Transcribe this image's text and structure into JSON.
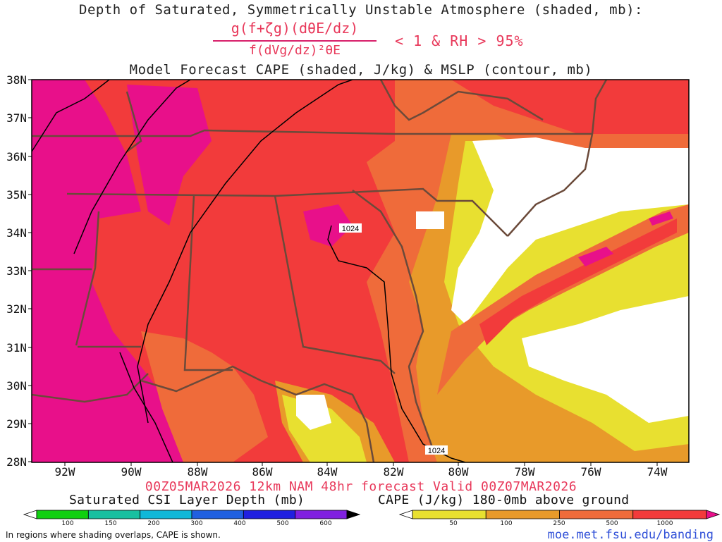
{
  "title": {
    "line1": "Depth of Saturated, Symmetrically Unstable Atmosphere (shaded, mb):",
    "numerator": "g(f+ζg)(dθE/dz)",
    "denominator": "f(dVg/dz)²θE",
    "condition": "< 1 & RH > 95%",
    "line3": "Model Forecast CAPE (shaded, J/kg) & MSLP (contour, mb)"
  },
  "map": {
    "latitude_labels": [
      "38N",
      "37N",
      "36N",
      "35N",
      "34N",
      "33N",
      "32N",
      "31N",
      "30N",
      "29N",
      "28N"
    ],
    "longitude_labels": [
      "92W",
      "90W",
      "88W",
      "86W",
      "84W",
      "82W",
      "80W",
      "78W",
      "76W",
      "74W"
    ],
    "contour_labels": [
      "1024",
      "1024"
    ],
    "colors": {
      "cape_1000": "#e8108a",
      "cape_500": "#f23b3b",
      "cape_250": "#ef6b3a",
      "cape_100": "#e89a2a",
      "cape_50": "#e8e030",
      "borders": "#6b4a3a",
      "isobar": "#000000"
    }
  },
  "footer": {
    "valid_line": "00Z05MAR2026 12km NAM 48hr forecast Valid 00Z07MAR2026",
    "csi_title": "Saturated CSI Layer Depth (mb)",
    "csi_ticks": [
      "100",
      "150",
      "200",
      "300",
      "400",
      "500",
      "600"
    ],
    "csi_colors": [
      "#ffffff",
      "#10d010",
      "#18c0a0",
      "#10b8d8",
      "#2060e0",
      "#2020e0",
      "#8020e0",
      "#000000"
    ],
    "cape_title": "CAPE (J/kg) 180-0mb above ground",
    "cape_ticks": [
      "50",
      "100",
      "250",
      "500",
      "1000"
    ],
    "cape_colors": [
      "#ffffff",
      "#e8e030",
      "#e89a2a",
      "#ef6b3a",
      "#f23b3b",
      "#e8108a"
    ],
    "note": "In regions where shading overlaps, CAPE is shown.",
    "url": "moe.met.fsu.edu/banding"
  }
}
